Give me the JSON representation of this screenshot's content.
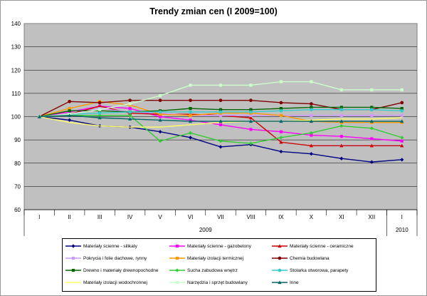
{
  "chart_data": {
    "type": "line",
    "title": "Trendy zmian cen (I 2009=100)",
    "xlabel": "",
    "ylabel": "",
    "ylim": [
      60,
      140
    ],
    "yticks": [
      60,
      70,
      80,
      90,
      100,
      110,
      120,
      130,
      140
    ],
    "grid": true,
    "plot_background": "#c0c0c0",
    "legend_position": "bottom",
    "categories": [
      "I",
      "II",
      "III",
      "IV",
      "V",
      "VI",
      "VII",
      "VIII",
      "IX",
      "X",
      "XI",
      "XII",
      "I"
    ],
    "year_groups": [
      {
        "label": "2009",
        "start": 0,
        "end": 11
      },
      {
        "label": "2010",
        "start": 12,
        "end": 12
      }
    ],
    "series": [
      {
        "name": "Materiały ścienne - silikaty",
        "color": "#000080",
        "marker": "diamond",
        "values": [
          100,
          98.5,
          96,
          95.5,
          93.5,
          91,
          87,
          88,
          85,
          84,
          82,
          80.5,
          81.5
        ]
      },
      {
        "name": "Materiały ścienne - gazobetony",
        "color": "#ff00ff",
        "marker": "square",
        "values": [
          100,
          102,
          104.5,
          103.5,
          100,
          98.5,
          96.5,
          94.5,
          93.5,
          92,
          91.5,
          90.5,
          89.5
        ]
      },
      {
        "name": "Materiały ścienne - ceramiczne",
        "color": "#cc0000",
        "marker": "triangle",
        "values": [
          100,
          101,
          104.5,
          101.5,
          101,
          101,
          100.5,
          99.5,
          89,
          87.5,
          87.5,
          87.5,
          87.5
        ]
      },
      {
        "name": "Pokrycia i folie dachowe, rynny",
        "color": "#cc99ff",
        "marker": "square",
        "values": [
          100,
          101,
          103.5,
          102,
          101.5,
          100.5,
          100.5,
          100.5,
          100.5,
          100.5,
          100.5,
          100.5,
          100.5
        ]
      },
      {
        "name": "Materiały izolacji termicznej",
        "color": "#ff9900",
        "marker": "square",
        "values": [
          100,
          103.5,
          106.5,
          105,
          101,
          100.5,
          101.5,
          101.5,
          100.5,
          98,
          97.5,
          97.5,
          97.5
        ]
      },
      {
        "name": "Chemia budowlana",
        "color": "#800000",
        "marker": "circle",
        "values": [
          100,
          106.5,
          106,
          107,
          107,
          107,
          107,
          107,
          106,
          105.5,
          103,
          103,
          106
        ]
      },
      {
        "name": "Drewno i materiały drewnopochodne",
        "color": "#006600",
        "marker": "square",
        "values": [
          100,
          102.5,
          102.5,
          102,
          102.5,
          103.5,
          103,
          103,
          103.5,
          104,
          104,
          104,
          103.5
        ]
      },
      {
        "name": "Sucha zabudowa wnętrz",
        "color": "#33cc33",
        "marker": "diamond",
        "values": [
          100,
          100.5,
          100.5,
          100.5,
          89.5,
          93,
          89.5,
          88.5,
          91,
          93,
          96,
          95,
          91
        ]
      },
      {
        "name": "Stolarka otworowa, parapety",
        "color": "#33cccc",
        "marker": "circle",
        "values": [
          100,
          101,
          101.5,
          102,
          102,
          102,
          102,
          102,
          102.5,
          103,
          103,
          103,
          102.5
        ]
      },
      {
        "name": "Materiały izolacji wodochronnej",
        "color": "#ffff66",
        "marker": "none",
        "values": [
          100,
          97.5,
          96,
          95.5,
          95.5,
          96.5,
          97.5,
          98,
          98,
          98.5,
          99,
          99,
          99.5
        ]
      },
      {
        "name": "Narzędzia i sprzęt budowlany",
        "color": "#ccffcc",
        "marker": "square",
        "values": [
          100,
          101,
          103,
          105.5,
          109,
          113.5,
          113.5,
          113.5,
          115,
          115,
          111.5,
          111.5,
          111.5
        ]
      },
      {
        "name": "Inne",
        "color": "#006666",
        "marker": "triangle",
        "values": [
          100,
          100.5,
          99.5,
          99,
          98.5,
          98,
          98,
          98,
          98,
          98,
          98,
          98,
          98
        ]
      }
    ]
  }
}
